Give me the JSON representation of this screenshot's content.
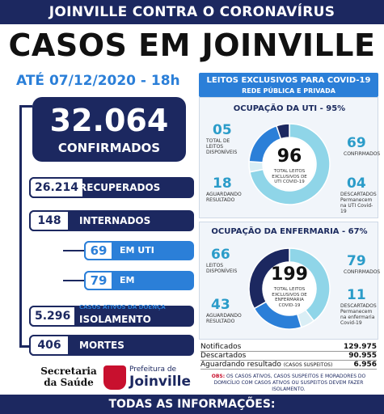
{
  "header": {
    "top": "JOINVILLE CONTRA O CORONAVÍRUS",
    "title": "CASOS EM JOINVILLE",
    "date": "ATÉ 07/12/2020 - 18h"
  },
  "confirmed": {
    "value": "32.064",
    "label": "CONFIRMADOS"
  },
  "rows": {
    "recuperados": {
      "value": "26.214",
      "label": "RECUPERADOS"
    },
    "internados": {
      "value": "148",
      "label": "INTERNADOS"
    },
    "uti": {
      "value": "69",
      "label": "EM UTI"
    },
    "enfermaria": {
      "value": "79",
      "label": "EM ENFERMARIA"
    },
    "isolamento": {
      "value": "5.296",
      "small": "CASOS ATIVOS DA DOENÇA",
      "label": "ISOLAMENTO DOMICILIAR"
    },
    "mortes": {
      "value": "406",
      "label": "MORTES"
    }
  },
  "logos": {
    "secretaria": "Secretaria da Saúde",
    "pref_small": "Prefeitura de",
    "pref_big": "Joinville"
  },
  "panel": {
    "title": "LEITOS EXCLUSIVOS PARA COVID-19",
    "subtitle": "REDE PÚBLICA E PRIVADA"
  },
  "chart_data": [
    {
      "type": "pie",
      "title": "OCUPAÇÃO DA UTI - 95%",
      "total": {
        "value": "96",
        "label": "TOTAL LEITOS EXCLUSIVOS DE UTI COVID-19"
      },
      "segments": [
        {
          "value": 69,
          "label": "CONFIRMADOS",
          "color": "#8fd5e8"
        },
        {
          "value": 4,
          "label": "DESCARTADOS Permanecem na UTI Covid-19",
          "color": "#d9eef5"
        },
        {
          "value": 18,
          "label": "AGUARDANDO RESULTADO",
          "color": "#2b7fd8"
        },
        {
          "value": 5,
          "label": "TOTAL DE LEITOS DISPONÍVEIS",
          "color": "#1c2860"
        }
      ],
      "value_labels": [
        "69",
        "04",
        "18",
        "05"
      ]
    },
    {
      "type": "pie",
      "title": "OCUPAÇÃO DA ENFERMARIA - 67%",
      "total": {
        "value": "199",
        "label": "TOTAL LEITOS EXCLUSIVOS DE ENFERMARIA COVID-19"
      },
      "segments": [
        {
          "value": 79,
          "label": "CONFIRMADOS",
          "color": "#8fd5e8"
        },
        {
          "value": 11,
          "label": "DESCARTADOS Permanecem na enfermaria Covid-19",
          "color": "#d9eef5"
        },
        {
          "value": 43,
          "label": "AGUARDANDO RESULTADO",
          "color": "#2b7fd8"
        },
        {
          "value": 66,
          "label": "LEITOS DISPONÍVEIS",
          "color": "#1c2860"
        }
      ],
      "value_labels": [
        "79",
        "11",
        "43",
        "66"
      ]
    }
  ],
  "stats": [
    {
      "label": "Notificados",
      "value": "129.975"
    },
    {
      "label": "Descartados",
      "value": "90.955"
    },
    {
      "label": "Aguardando resultado",
      "extra": "(CASOS SUSPEITOS)",
      "value": "6.956"
    }
  ],
  "obs": {
    "prefix": "OBS:",
    "text": "OS CASOS ATIVOS, CASOS SUSPEITOS E MORADORES DO DOMICÍLIO COM CASOS ATIVOS OU SUSPEITOS DEVEM FAZER ISOLAMENTO."
  },
  "footer": "TODAS AS INFORMAÇÕES: JOINVILLE.SC.GOV.BR/CORONAVIRUS"
}
